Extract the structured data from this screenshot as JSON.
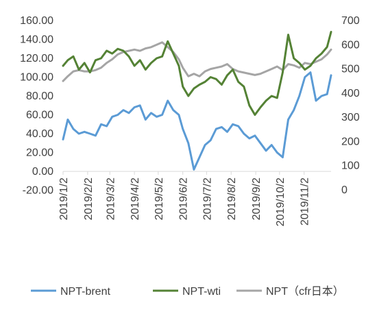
{
  "chart_data": {
    "type": "line",
    "title": "",
    "xlabel": "",
    "ylabel": "",
    "y_left": {
      "min": -20,
      "max": 160,
      "step": 20,
      "ticks": [
        "-20.00",
        "0.00",
        "20.00",
        "40.00",
        "60.00",
        "80.00",
        "100.00",
        "120.00",
        "140.00",
        "160.00"
      ]
    },
    "y_right": {
      "min": 0,
      "max": 700,
      "step": 100,
      "ticks": [
        "0",
        "100",
        "200",
        "300",
        "400",
        "500",
        "600",
        "700"
      ]
    },
    "x_ticks": [
      "2019/1/2",
      "2019/2/2",
      "2019/3/2",
      "2019/4/2",
      "2019/5/2",
      "2019/6/2",
      "2019/7/2",
      "2019/8/2",
      "2019/9/2",
      "2019/10/2",
      "2019/11/2"
    ],
    "x_tick_dates": [
      "2019-01-02",
      "2019-02-02",
      "2019-03-02",
      "2019-04-02",
      "2019-05-02",
      "2019-06-02",
      "2019-07-02",
      "2019-08-02",
      "2019-09-02",
      "2019-10-02",
      "2019-11-02"
    ],
    "x_range": [
      "2019-01-02",
      "2019-12-06"
    ],
    "gridlines": false,
    "legend_position": "bottom",
    "series": [
      {
        "name": "NPT-brent",
        "axis": "left",
        "color": "#5b9bd5",
        "x": [
          "2019-01-02",
          "2019-01-08",
          "2019-01-15",
          "2019-01-22",
          "2019-01-29",
          "2019-02-05",
          "2019-02-12",
          "2019-02-19",
          "2019-02-26",
          "2019-03-05",
          "2019-03-12",
          "2019-03-19",
          "2019-03-26",
          "2019-04-02",
          "2019-04-09",
          "2019-04-16",
          "2019-04-23",
          "2019-04-30",
          "2019-05-07",
          "2019-05-14",
          "2019-05-21",
          "2019-05-28",
          "2019-06-02",
          "2019-06-09",
          "2019-06-16",
          "2019-06-23",
          "2019-06-30",
          "2019-07-07",
          "2019-07-14",
          "2019-07-21",
          "2019-07-28",
          "2019-08-04",
          "2019-08-11",
          "2019-08-18",
          "2019-08-25",
          "2019-09-01",
          "2019-09-08",
          "2019-09-15",
          "2019-09-22",
          "2019-09-29",
          "2019-10-06",
          "2019-10-13",
          "2019-10-20",
          "2019-10-27",
          "2019-11-03",
          "2019-11-10",
          "2019-11-17",
          "2019-11-24",
          "2019-12-01",
          "2019-12-06"
        ],
        "values": [
          34,
          55,
          45,
          40,
          42,
          40,
          38,
          50,
          48,
          58,
          60,
          65,
          62,
          68,
          70,
          55,
          62,
          58,
          60,
          75,
          65,
          60,
          45,
          30,
          2,
          15,
          28,
          33,
          45,
          47,
          42,
          50,
          48,
          40,
          35,
          38,
          30,
          22,
          28,
          20,
          15,
          55,
          65,
          80,
          100,
          105,
          75,
          80,
          82,
          102
        ]
      },
      {
        "name": "NPT-wti",
        "axis": "left",
        "color": "#548235",
        "x": [
          "2019-01-02",
          "2019-01-08",
          "2019-01-15",
          "2019-01-22",
          "2019-01-29",
          "2019-02-05",
          "2019-02-12",
          "2019-02-19",
          "2019-02-26",
          "2019-03-05",
          "2019-03-12",
          "2019-03-19",
          "2019-03-26",
          "2019-04-02",
          "2019-04-09",
          "2019-04-16",
          "2019-04-23",
          "2019-04-30",
          "2019-05-07",
          "2019-05-14",
          "2019-05-21",
          "2019-05-28",
          "2019-06-02",
          "2019-06-09",
          "2019-06-16",
          "2019-06-23",
          "2019-06-30",
          "2019-07-07",
          "2019-07-14",
          "2019-07-21",
          "2019-07-28",
          "2019-08-04",
          "2019-08-11",
          "2019-08-18",
          "2019-08-25",
          "2019-09-01",
          "2019-09-08",
          "2019-09-15",
          "2019-09-22",
          "2019-09-29",
          "2019-10-06",
          "2019-10-13",
          "2019-10-20",
          "2019-10-27",
          "2019-11-03",
          "2019-11-10",
          "2019-11-17",
          "2019-11-24",
          "2019-12-01",
          "2019-12-06"
        ],
        "values": [
          112,
          118,
          122,
          108,
          115,
          105,
          118,
          120,
          128,
          125,
          130,
          128,
          122,
          112,
          118,
          108,
          115,
          120,
          122,
          138,
          125,
          112,
          90,
          80,
          88,
          92,
          95,
          100,
          98,
          92,
          102,
          108,
          95,
          90,
          70,
          60,
          68,
          75,
          80,
          78,
          105,
          145,
          120,
          115,
          108,
          112,
          120,
          125,
          132,
          148
        ]
      },
      {
        "name": "NPT（cfr日本）",
        "axis": "right",
        "color": "#a5a5a5",
        "x": [
          "2019-01-02",
          "2019-01-08",
          "2019-01-15",
          "2019-01-22",
          "2019-01-29",
          "2019-02-05",
          "2019-02-12",
          "2019-02-19",
          "2019-02-26",
          "2019-03-05",
          "2019-03-12",
          "2019-03-19",
          "2019-03-26",
          "2019-04-02",
          "2019-04-09",
          "2019-04-16",
          "2019-04-23",
          "2019-04-30",
          "2019-05-07",
          "2019-05-14",
          "2019-05-21",
          "2019-05-28",
          "2019-06-02",
          "2019-06-09",
          "2019-06-16",
          "2019-06-23",
          "2019-06-30",
          "2019-07-07",
          "2019-07-14",
          "2019-07-21",
          "2019-07-28",
          "2019-08-04",
          "2019-08-11",
          "2019-08-18",
          "2019-08-25",
          "2019-09-01",
          "2019-09-08",
          "2019-09-15",
          "2019-09-22",
          "2019-09-29",
          "2019-10-06",
          "2019-10-13",
          "2019-10-20",
          "2019-10-27",
          "2019-11-03",
          "2019-11-10",
          "2019-11-17",
          "2019-11-24",
          "2019-12-01",
          "2019-12-06"
        ],
        "values": [
          450,
          470,
          490,
          495,
          490,
          490,
          495,
          505,
          525,
          540,
          560,
          570,
          575,
          580,
          575,
          585,
          590,
          600,
          610,
          590,
          570,
          540,
          505,
          470,
          480,
          470,
          490,
          500,
          505,
          510,
          520,
          500,
          490,
          485,
          480,
          475,
          480,
          490,
          500,
          510,
          495,
          520,
          515,
          505,
          525,
          520,
          530,
          540,
          560,
          580
        ]
      }
    ]
  }
}
